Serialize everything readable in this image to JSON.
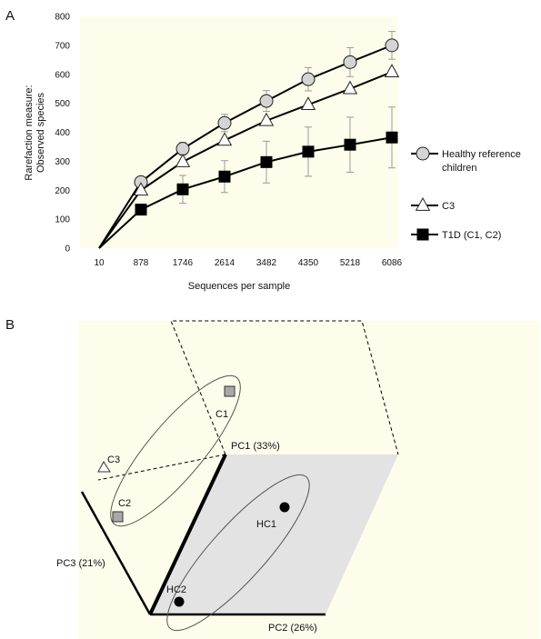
{
  "panels": {
    "a_label": "A",
    "b_label": "B"
  },
  "colors": {
    "plot_background": "#fefdeb",
    "pca_background": "#fefdeb",
    "pca_gray_plane": "#e3e3e3",
    "healthy_fill": "#d4d4d4",
    "c3_fill": "#ffffff",
    "t1d_fill": "#000000",
    "line": "#000000",
    "error_bar": "#9a9a9a"
  },
  "chart_data": [
    {
      "type": "line",
      "title": "",
      "xlabel": "Sequences per sample",
      "ylabel": [
        "Rarefaction measure:",
        "Observed species"
      ],
      "categories": [
        "10",
        "878",
        "1746",
        "2614",
        "3482",
        "4350",
        "5218",
        "6086"
      ],
      "ylim": [
        0,
        800
      ],
      "yticks": [
        0,
        100,
        200,
        300,
        400,
        500,
        600,
        700,
        800
      ],
      "legend_position": "right",
      "series": [
        {
          "name": [
            "Healthy reference",
            "children"
          ],
          "marker": "circle",
          "values": [
            0,
            228,
            343,
            432,
            508,
            583,
            642,
            700
          ],
          "error": [
            0,
            18,
            22,
            30,
            36,
            40,
            50,
            48
          ]
        },
        {
          "name": [
            "C3"
          ],
          "marker": "triangle",
          "values": [
            0,
            200,
            298,
            372,
            440,
            495,
            550,
            608
          ],
          "error": null
        },
        {
          "name": [
            "T1D (C1, C2)"
          ],
          "marker": "square",
          "values": [
            0,
            133,
            203,
            247,
            297,
            333,
            357,
            382
          ],
          "error": [
            0,
            15,
            48,
            55,
            72,
            85,
            95,
            105
          ]
        }
      ]
    },
    {
      "type": "scatter",
      "title": "",
      "axes": {
        "pc1": "PC1 (33%)",
        "pc2": "PC2 (26%)",
        "pc3": "PC3 (21%)"
      },
      "points": [
        {
          "label": "C1",
          "marker": "square",
          "group": "T1D"
        },
        {
          "label": "C2",
          "marker": "square",
          "group": "T1D"
        },
        {
          "label": "C3",
          "marker": "triangle",
          "group": "C3"
        },
        {
          "label": "HC1",
          "marker": "circle",
          "group": "Healthy"
        },
        {
          "label": "HC2",
          "marker": "circle",
          "group": "Healthy"
        }
      ]
    }
  ]
}
